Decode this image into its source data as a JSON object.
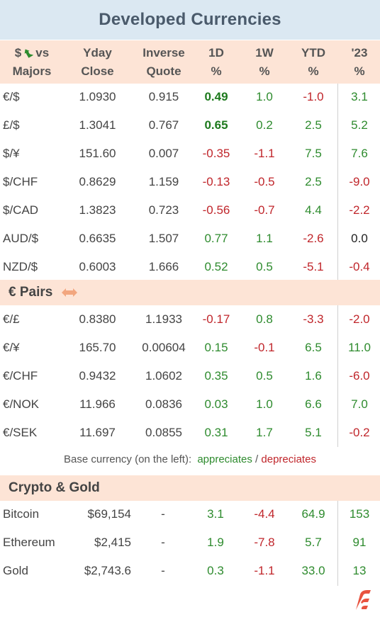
{
  "title": "Developed Currencies",
  "headers": {
    "pair_line1": "$",
    "pair_line1b": "vs",
    "pair_line2": "Majors",
    "yday_line1": "Yday",
    "yday_line2": "Close",
    "inv_line1": "Inverse",
    "inv_line2": "Quote",
    "d1_line1": "1D",
    "d1_line2": "%",
    "w1_line1": "1W",
    "w1_line2": "%",
    "ytd_line1": "YTD",
    "ytd_line2": "%",
    "y23_line1": "'23",
    "y23_line2": "%"
  },
  "majors": [
    {
      "pair": "€/$",
      "yday": "1.0930",
      "inv": "0.915",
      "d1": "0.49",
      "w1": "1.0",
      "ytd": "-1.0",
      "y23": "3.1"
    },
    {
      "pair": "£/$",
      "yday": "1.3041",
      "inv": "0.767",
      "d1": "0.65",
      "w1": "0.2",
      "ytd": "2.5",
      "y23": "5.2"
    },
    {
      "pair": "$/¥",
      "yday": "151.60",
      "inv": "0.007",
      "d1": "-0.35",
      "w1": "-1.1",
      "ytd": "7.5",
      "y23": "7.6"
    },
    {
      "pair": "$/CHF",
      "yday": "0.8629",
      "inv": "1.159",
      "d1": "-0.13",
      "w1": "-0.5",
      "ytd": "2.5",
      "y23": "-9.0"
    },
    {
      "pair": "$/CAD",
      "yday": "1.3823",
      "inv": "0.723",
      "d1": "-0.56",
      "w1": "-0.7",
      "ytd": "4.4",
      "y23": "-2.2"
    },
    {
      "pair": "AUD/$",
      "yday": "0.6635",
      "inv": "1.507",
      "d1": "0.77",
      "w1": "1.1",
      "ytd": "-2.6",
      "y23": "0.0"
    },
    {
      "pair": "NZD/$",
      "yday": "0.6003",
      "inv": "1.666",
      "d1": "0.52",
      "w1": "0.5",
      "ytd": "-5.1",
      "y23": "-0.4"
    }
  ],
  "euro_section": "€ Pairs",
  "euro": [
    {
      "pair": "€/£",
      "yday": "0.8380",
      "inv": "1.1933",
      "d1": "-0.17",
      "w1": "0.8",
      "ytd": "-3.3",
      "y23": "-2.0"
    },
    {
      "pair": "€/¥",
      "yday": "165.70",
      "inv": "0.00604",
      "d1": "0.15",
      "w1": "-0.1",
      "ytd": "6.5",
      "y23": "11.0"
    },
    {
      "pair": "€/CHF",
      "yday": "0.9432",
      "inv": "1.0602",
      "d1": "0.35",
      "w1": "0.5",
      "ytd": "1.6",
      "y23": "-6.0"
    },
    {
      "pair": "€/NOK",
      "yday": "11.966",
      "inv": "0.0836",
      "d1": "0.03",
      "w1": "1.0",
      "ytd": "6.6",
      "y23": "7.0"
    },
    {
      "pair": "€/SEK",
      "yday": "11.697",
      "inv": "0.0855",
      "d1": "0.31",
      "w1": "1.7",
      "ytd": "5.1",
      "y23": "-0.2"
    }
  ],
  "note": {
    "prefix": "Base currency (on the left):",
    "appreciates": "appreciates",
    "slash": "/",
    "depreciates": "depreciates"
  },
  "crypto_section": "Crypto & Gold",
  "crypto": [
    {
      "pair": "Bitcoin",
      "yday": "$69,154",
      "inv": "-",
      "d1": "3.1",
      "w1": "-4.4",
      "ytd": "64.9",
      "y23": "153"
    },
    {
      "pair": "Ethereum",
      "yday": "$2,415",
      "inv": "-",
      "d1": "1.9",
      "w1": "-7.8",
      "ytd": "5.7",
      "y23": "91"
    },
    {
      "pair": "Gold",
      "yday": "$2,743.6",
      "inv": "-",
      "d1": "0.3",
      "w1": "-1.1",
      "ytd": "33.0",
      "y23": "13"
    }
  ],
  "colors": {
    "positive": "#2e8b2e",
    "negative": "#c0262b",
    "header_bg": "#fde4d6",
    "title_bg": "#dbe8f2",
    "brand": "#e8533f"
  },
  "icons": {
    "pair_header": "up-left-arrow-icon",
    "euro_section": "left-right-arrow-icon",
    "brand": "brand-logo-icon"
  }
}
